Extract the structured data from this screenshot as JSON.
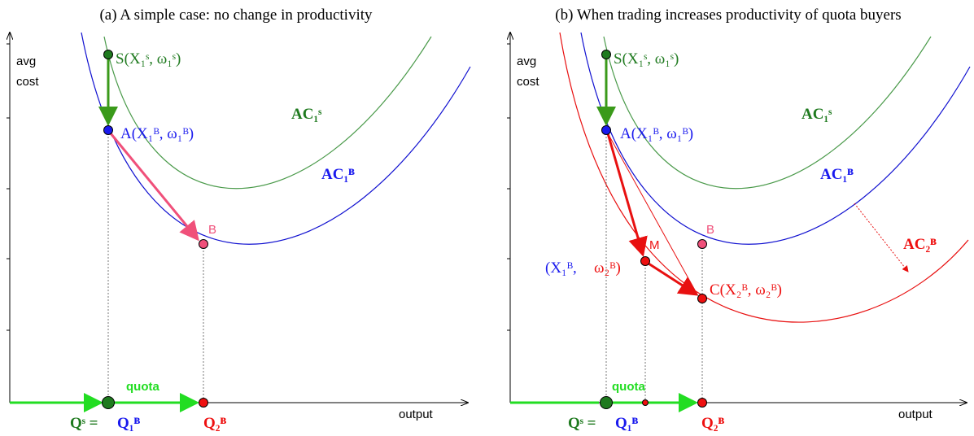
{
  "panels": [
    {
      "title": "(a) A simple case: no change in productivity",
      "y_label": [
        "avg",
        "cost"
      ],
      "x_label": "output",
      "labels": {
        "s_point": "S(X₁ˢ, ω₁ˢ)",
        "a_point": "A(X₁ᴮ, ω₁ᴮ)",
        "b_point": "B",
        "ac1s": "AC₁ˢ",
        "ac1b": "AC₁ᴮ",
        "quota": "quota",
        "qs": "Qˢ =",
        "q1b": "Q₁ᴮ",
        "q2b": "Q₂ᴮ"
      }
    },
    {
      "title": "(b) When trading increases productivity of quota buyers",
      "y_label": [
        "avg",
        "cost"
      ],
      "x_label": "output",
      "labels": {
        "s_point": "S(X₁ˢ, ω₁ˢ)",
        "a_point": "A(X₁ᴮ, ω₁ᴮ)",
        "b_point": "B",
        "m_point": "M",
        "m_coord_1": "(X₁ᴮ,",
        "m_coord_2": "ω₂ᴮ)",
        "c_point": "C(X₂ᴮ, ω₂ᴮ)",
        "ac1s": "AC₁ˢ",
        "ac1b": "AC₁ᴮ",
        "ac2b": "AC₂ᴮ",
        "quota": "quota",
        "qs": "Qˢ =",
        "q1b": "Q₁ᴮ",
        "q2b": "Q₂ᴮ"
      }
    }
  ]
}
